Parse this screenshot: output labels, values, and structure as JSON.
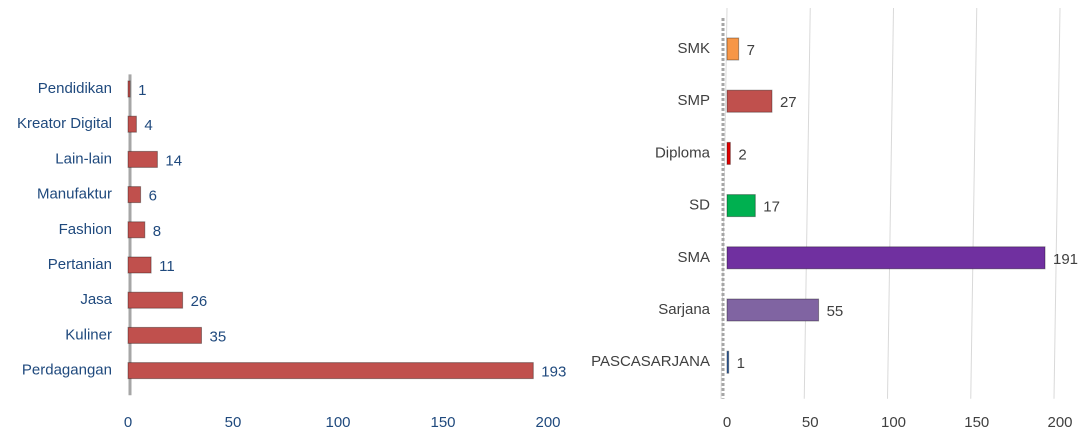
{
  "chart_data": [
    {
      "type": "bar",
      "orientation": "horizontal",
      "categories": [
        "Pendidikan",
        "Kreator Digital",
        "Lain-lain",
        "Manufaktur",
        "Fashion",
        "Pertanian",
        "Jasa",
        "Kuliner",
        "Perdagangan"
      ],
      "values": [
        1,
        4,
        14,
        6,
        8,
        11,
        26,
        35,
        193
      ],
      "color": "#c0504d",
      "xlim": [
        0,
        200
      ],
      "xticks": [
        0,
        50,
        100,
        150,
        200
      ],
      "grid": false
    },
    {
      "type": "bar",
      "orientation": "horizontal",
      "categories": [
        "SMK",
        "SMP",
        "Diploma",
        "SD",
        "SMA",
        "Sarjana",
        "PASCASARJANA"
      ],
      "values": [
        7,
        27,
        2,
        17,
        191,
        55,
        1
      ],
      "colors": [
        "#f79646",
        "#c0504d",
        "#e00000",
        "#00b050",
        "#7030a0",
        "#8064a2",
        "#2e5fa3"
      ],
      "xlim": [
        0,
        200
      ],
      "xticks": [
        0,
        50,
        100,
        150,
        200
      ],
      "grid": true
    }
  ]
}
